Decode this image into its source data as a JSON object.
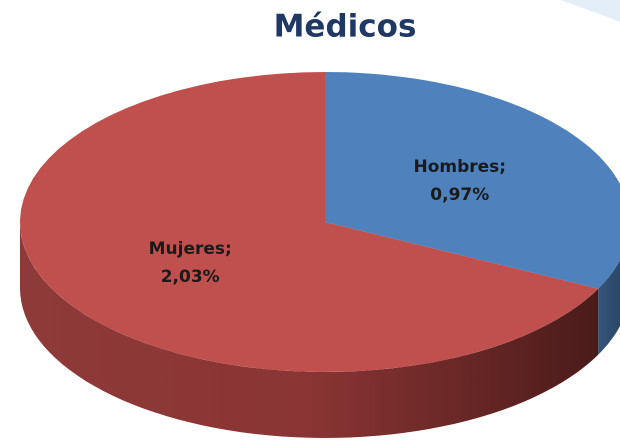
{
  "chart_data": {
    "type": "pie",
    "title": "Médicos",
    "categories": [
      "Hombres;",
      "Mujeres;"
    ],
    "values": [
      0.97,
      2.03
    ],
    "value_labels": [
      "0,97%",
      "2,03%"
    ],
    "colors": [
      "#4f81bd",
      "#c0504d"
    ]
  }
}
